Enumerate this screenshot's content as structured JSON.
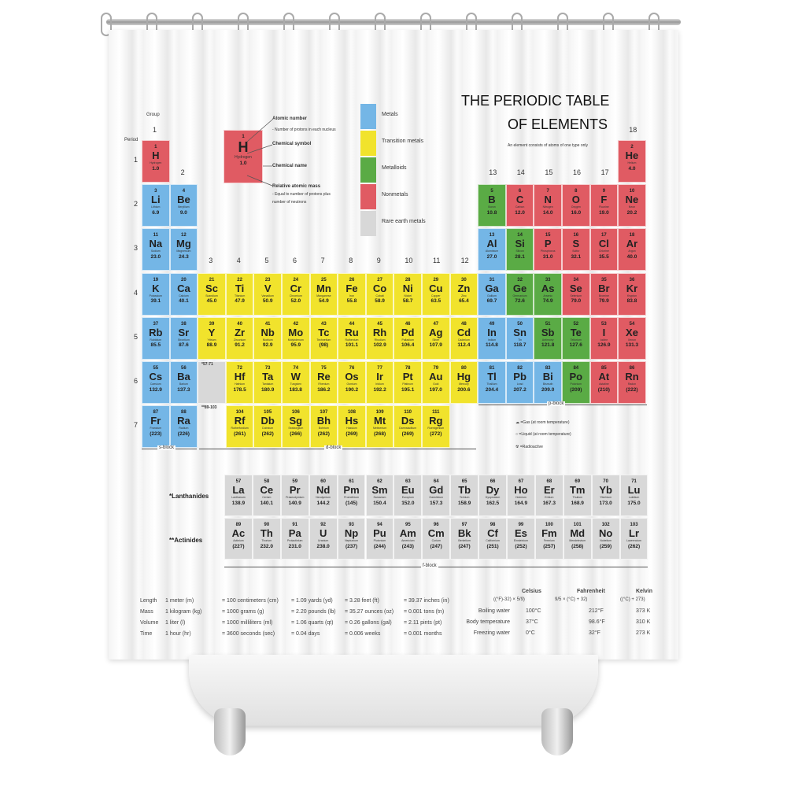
{
  "colors": {
    "metal": "#74b6e6",
    "transition": "#f1e32c",
    "metalloid": "#5aab45",
    "nonmetal": "#e05b63",
    "rare": "#d8d8d8"
  },
  "title_line1": "THE PERIODIC TABLE",
  "title_line2": "OF ELEMENTS",
  "subtitle": "An element consists of atoms of one type only",
  "group_label": "Group",
  "period_label": "Period",
  "groups": [
    "1",
    "2",
    "3",
    "4",
    "5",
    "6",
    "7",
    "8",
    "9",
    "10",
    "11",
    "12",
    "13",
    "14",
    "15",
    "16",
    "17",
    "18"
  ],
  "periods": [
    "1",
    "2",
    "3",
    "4",
    "5",
    "6",
    "7"
  ],
  "key": {
    "number": "1",
    "symbol": "H",
    "name": "Hydrogen",
    "mass": "1.0",
    "atomic_number": "Atomic number",
    "atomic_number_desc": "- Number of protons in each nucleus",
    "chemical_symbol": "Chemical symbol",
    "chemical_name": "Chemical name",
    "atomic_mass": "Relative atomic mass",
    "atomic_mass_desc1": "- Equal to number of protons plus",
    "atomic_mass_desc2": "number of neutrons"
  },
  "legend": [
    {
      "label": "Metals",
      "cat": "metal"
    },
    {
      "label": "Transition metals",
      "cat": "transition"
    },
    {
      "label": "Metalloids",
      "cat": "metalloid"
    },
    {
      "label": "Nonmetals",
      "cat": "nonmetal"
    },
    {
      "label": "Rare earth metals",
      "cat": "rare"
    }
  ],
  "state_legend": {
    "gas": "=Gas (at room temperature)",
    "liquid": "=Liquid (at room temperature)",
    "radioactive": "=Radioactive"
  },
  "blocks": {
    "s": "s-block",
    "d": "d-block",
    "p": "p-block",
    "f": "f-block"
  },
  "lanth_ref": "*57-71",
  "act_ref": "**89-103",
  "lanth_label": "*Lanthanides",
  "act_label": "**Actinides",
  "elements": [
    {
      "n": "1",
      "s": "H",
      "name": "Hydrogen",
      "m": "1.0",
      "c": "nonmetal",
      "g": 1,
      "p": 1
    },
    {
      "n": "2",
      "s": "He",
      "name": "Helium",
      "m": "4.0",
      "c": "nonmetal",
      "g": 18,
      "p": 1
    },
    {
      "n": "3",
      "s": "Li",
      "name": "Lithium",
      "m": "6.9",
      "c": "metal",
      "g": 1,
      "p": 2
    },
    {
      "n": "4",
      "s": "Be",
      "name": "Beryllium",
      "m": "9.0",
      "c": "metal",
      "g": 2,
      "p": 2
    },
    {
      "n": "5",
      "s": "B",
      "name": "Boron",
      "m": "10.8",
      "c": "metalloid",
      "g": 13,
      "p": 2
    },
    {
      "n": "6",
      "s": "C",
      "name": "Carbon",
      "m": "12.0",
      "c": "nonmetal",
      "g": 14,
      "p": 2
    },
    {
      "n": "7",
      "s": "N",
      "name": "Nitrogen",
      "m": "14.0",
      "c": "nonmetal",
      "g": 15,
      "p": 2
    },
    {
      "n": "8",
      "s": "O",
      "name": "Oxygen",
      "m": "16.0",
      "c": "nonmetal",
      "g": 16,
      "p": 2
    },
    {
      "n": "9",
      "s": "F",
      "name": "Fluorine",
      "m": "19.0",
      "c": "nonmetal",
      "g": 17,
      "p": 2
    },
    {
      "n": "10",
      "s": "Ne",
      "name": "Neon",
      "m": "20.2",
      "c": "nonmetal",
      "g": 18,
      "p": 2
    },
    {
      "n": "11",
      "s": "Na",
      "name": "Sodium",
      "m": "23.0",
      "c": "metal",
      "g": 1,
      "p": 3
    },
    {
      "n": "12",
      "s": "Mg",
      "name": "Magnesium",
      "m": "24.3",
      "c": "metal",
      "g": 2,
      "p": 3
    },
    {
      "n": "13",
      "s": "Al",
      "name": "Aluminium",
      "m": "27.0",
      "c": "metal",
      "g": 13,
      "p": 3
    },
    {
      "n": "14",
      "s": "Si",
      "name": "Silicon",
      "m": "28.1",
      "c": "metalloid",
      "g": 14,
      "p": 3
    },
    {
      "n": "15",
      "s": "P",
      "name": "Phosphorus",
      "m": "31.0",
      "c": "nonmetal",
      "g": 15,
      "p": 3
    },
    {
      "n": "16",
      "s": "S",
      "name": "Sulfur",
      "m": "32.1",
      "c": "nonmetal",
      "g": 16,
      "p": 3
    },
    {
      "n": "17",
      "s": "Cl",
      "name": "Chlorine",
      "m": "35.5",
      "c": "nonmetal",
      "g": 17,
      "p": 3
    },
    {
      "n": "18",
      "s": "Ar",
      "name": "Argon",
      "m": "40.0",
      "c": "nonmetal",
      "g": 18,
      "p": 3
    },
    {
      "n": "19",
      "s": "K",
      "name": "Potassium",
      "m": "39.1",
      "c": "metal",
      "g": 1,
      "p": 4
    },
    {
      "n": "20",
      "s": "Ca",
      "name": "Calcium",
      "m": "40.1",
      "c": "metal",
      "g": 2,
      "p": 4
    },
    {
      "n": "21",
      "s": "Sc",
      "name": "Scandium",
      "m": "45.0",
      "c": "transition",
      "g": 3,
      "p": 4
    },
    {
      "n": "22",
      "s": "Ti",
      "name": "Titanium",
      "m": "47.9",
      "c": "transition",
      "g": 4,
      "p": 4
    },
    {
      "n": "23",
      "s": "V",
      "name": "Vanadium",
      "m": "50.9",
      "c": "transition",
      "g": 5,
      "p": 4
    },
    {
      "n": "24",
      "s": "Cr",
      "name": "Chromium",
      "m": "52.0",
      "c": "transition",
      "g": 6,
      "p": 4
    },
    {
      "n": "25",
      "s": "Mn",
      "name": "Manganese",
      "m": "54.9",
      "c": "transition",
      "g": 7,
      "p": 4
    },
    {
      "n": "26",
      "s": "Fe",
      "name": "Iron",
      "m": "55.8",
      "c": "transition",
      "g": 8,
      "p": 4
    },
    {
      "n": "27",
      "s": "Co",
      "name": "Cobalt",
      "m": "58.9",
      "c": "transition",
      "g": 9,
      "p": 4
    },
    {
      "n": "28",
      "s": "Ni",
      "name": "Nickel",
      "m": "58.7",
      "c": "transition",
      "g": 10,
      "p": 4
    },
    {
      "n": "29",
      "s": "Cu",
      "name": "Copper",
      "m": "63.5",
      "c": "transition",
      "g": 11,
      "p": 4
    },
    {
      "n": "30",
      "s": "Zn",
      "name": "Zinc",
      "m": "65.4",
      "c": "transition",
      "g": 12,
      "p": 4
    },
    {
      "n": "31",
      "s": "Ga",
      "name": "Gallium",
      "m": "69.7",
      "c": "metal",
      "g": 13,
      "p": 4
    },
    {
      "n": "32",
      "s": "Ge",
      "name": "Germanium",
      "m": "72.6",
      "c": "metalloid",
      "g": 14,
      "p": 4
    },
    {
      "n": "33",
      "s": "As",
      "name": "Arsenic",
      "m": "74.9",
      "c": "metalloid",
      "g": 15,
      "p": 4
    },
    {
      "n": "34",
      "s": "Se",
      "name": "Selenium",
      "m": "79.0",
      "c": "nonmetal",
      "g": 16,
      "p": 4
    },
    {
      "n": "35",
      "s": "Br",
      "name": "Bromine",
      "m": "79.9",
      "c": "nonmetal",
      "g": 17,
      "p": 4
    },
    {
      "n": "36",
      "s": "Kr",
      "name": "Krypton",
      "m": "83.8",
      "c": "nonmetal",
      "g": 18,
      "p": 4
    },
    {
      "n": "37",
      "s": "Rb",
      "name": "Rubidium",
      "m": "85.5",
      "c": "metal",
      "g": 1,
      "p": 5
    },
    {
      "n": "38",
      "s": "Sr",
      "name": "Strontium",
      "m": "87.6",
      "c": "metal",
      "g": 2,
      "p": 5
    },
    {
      "n": "39",
      "s": "Y",
      "name": "Yttrium",
      "m": "88.9",
      "c": "transition",
      "g": 3,
      "p": 5
    },
    {
      "n": "40",
      "s": "Zr",
      "name": "Zirconium",
      "m": "91.2",
      "c": "transition",
      "g": 4,
      "p": 5
    },
    {
      "n": "41",
      "s": "Nb",
      "name": "Niobium",
      "m": "92.9",
      "c": "transition",
      "g": 5,
      "p": 5
    },
    {
      "n": "42",
      "s": "Mo",
      "name": "Molybdenum",
      "m": "95.9",
      "c": "transition",
      "g": 6,
      "p": 5
    },
    {
      "n": "43",
      "s": "Tc",
      "name": "Technetium",
      "m": "(98)",
      "c": "transition",
      "g": 7,
      "p": 5
    },
    {
      "n": "44",
      "s": "Ru",
      "name": "Ruthenium",
      "m": "101.1",
      "c": "transition",
      "g": 8,
      "p": 5
    },
    {
      "n": "45",
      "s": "Rh",
      "name": "Rhodium",
      "m": "102.9",
      "c": "transition",
      "g": 9,
      "p": 5
    },
    {
      "n": "46",
      "s": "Pd",
      "name": "Palladium",
      "m": "106.4",
      "c": "transition",
      "g": 10,
      "p": 5
    },
    {
      "n": "47",
      "s": "Ag",
      "name": "Silver",
      "m": "107.9",
      "c": "transition",
      "g": 11,
      "p": 5
    },
    {
      "n": "48",
      "s": "Cd",
      "name": "Cadmium",
      "m": "112.4",
      "c": "transition",
      "g": 12,
      "p": 5
    },
    {
      "n": "49",
      "s": "In",
      "name": "Indium",
      "m": "114.8",
      "c": "metal",
      "g": 13,
      "p": 5
    },
    {
      "n": "50",
      "s": "Sn",
      "name": "Tin",
      "m": "118.7",
      "c": "metal",
      "g": 14,
      "p": 5
    },
    {
      "n": "51",
      "s": "Sb",
      "name": "Antimony",
      "m": "121.8",
      "c": "metalloid",
      "g": 15,
      "p": 5
    },
    {
      "n": "52",
      "s": "Te",
      "name": "Tellurium",
      "m": "127.6",
      "c": "metalloid",
      "g": 16,
      "p": 5
    },
    {
      "n": "53",
      "s": "I",
      "name": "Iodine",
      "m": "126.9",
      "c": "nonmetal",
      "g": 17,
      "p": 5
    },
    {
      "n": "54",
      "s": "Xe",
      "name": "Xenon",
      "m": "131.3",
      "c": "nonmetal",
      "g": 18,
      "p": 5
    },
    {
      "n": "55",
      "s": "Cs",
      "name": "Caesium",
      "m": "132.9",
      "c": "metal",
      "g": 1,
      "p": 6
    },
    {
      "n": "56",
      "s": "Ba",
      "name": "Barium",
      "m": "137.3",
      "c": "metal",
      "g": 2,
      "p": 6
    },
    {
      "n": "72",
      "s": "Hf",
      "name": "Hafnium",
      "m": "178.5",
      "c": "transition",
      "g": 4,
      "p": 6
    },
    {
      "n": "73",
      "s": "Ta",
      "name": "Tantalum",
      "m": "180.9",
      "c": "transition",
      "g": 5,
      "p": 6
    },
    {
      "n": "74",
      "s": "W",
      "name": "Tungsten",
      "m": "183.8",
      "c": "transition",
      "g": 6,
      "p": 6
    },
    {
      "n": "75",
      "s": "Re",
      "name": "Rhenium",
      "m": "186.2",
      "c": "transition",
      "g": 7,
      "p": 6
    },
    {
      "n": "76",
      "s": "Os",
      "name": "Osmium",
      "m": "190.2",
      "c": "transition",
      "g": 8,
      "p": 6
    },
    {
      "n": "77",
      "s": "Ir",
      "name": "Iridium",
      "m": "192.2",
      "c": "transition",
      "g": 9,
      "p": 6
    },
    {
      "n": "78",
      "s": "Pt",
      "name": "Platinum",
      "m": "195.1",
      "c": "transition",
      "g": 10,
      "p": 6
    },
    {
      "n": "79",
      "s": "Au",
      "name": "Gold",
      "m": "197.0",
      "c": "transition",
      "g": 11,
      "p": 6
    },
    {
      "n": "80",
      "s": "Hg",
      "name": "Mercury",
      "m": "200.6",
      "c": "transition",
      "g": 12,
      "p": 6
    },
    {
      "n": "81",
      "s": "Tl",
      "name": "Thallium",
      "m": "204.4",
      "c": "metal",
      "g": 13,
      "p": 6
    },
    {
      "n": "82",
      "s": "Pb",
      "name": "Lead",
      "m": "207.2",
      "c": "metal",
      "g": 14,
      "p": 6
    },
    {
      "n": "83",
      "s": "Bi",
      "name": "Bismuth",
      "m": "209.0",
      "c": "metal",
      "g": 15,
      "p": 6
    },
    {
      "n": "84",
      "s": "Po",
      "name": "Polonium",
      "m": "(209)",
      "c": "metalloid",
      "g": 16,
      "p": 6
    },
    {
      "n": "85",
      "s": "At",
      "name": "Astatine",
      "m": "(210)",
      "c": "nonmetal",
      "g": 17,
      "p": 6
    },
    {
      "n": "86",
      "s": "Rn",
      "name": "Radon",
      "m": "(222)",
      "c": "nonmetal",
      "g": 18,
      "p": 6
    },
    {
      "n": "87",
      "s": "Fr",
      "name": "Francium",
      "m": "(223)",
      "c": "metal",
      "g": 1,
      "p": 7
    },
    {
      "n": "88",
      "s": "Ra",
      "name": "Radium",
      "m": "(226)",
      "c": "metal",
      "g": 2,
      "p": 7
    },
    {
      "n": "104",
      "s": "Rf",
      "name": "Rutherfordium",
      "m": "(261)",
      "c": "transition",
      "g": 4,
      "p": 7
    },
    {
      "n": "105",
      "s": "Db",
      "name": "Dubnium",
      "m": "(262)",
      "c": "transition",
      "g": 5,
      "p": 7
    },
    {
      "n": "106",
      "s": "Sg",
      "name": "Seaborgium",
      "m": "(266)",
      "c": "transition",
      "g": 6,
      "p": 7
    },
    {
      "n": "107",
      "s": "Bh",
      "name": "Bohrium",
      "m": "(262)",
      "c": "transition",
      "g": 7,
      "p": 7
    },
    {
      "n": "108",
      "s": "Hs",
      "name": "Hassium",
      "m": "(269)",
      "c": "transition",
      "g": 8,
      "p": 7
    },
    {
      "n": "109",
      "s": "Mt",
      "name": "Meitnerium",
      "m": "(268)",
      "c": "transition",
      "g": 9,
      "p": 7
    },
    {
      "n": "110",
      "s": "Ds",
      "name": "Darmstadtium",
      "m": "(269)",
      "c": "transition",
      "g": 10,
      "p": 7
    },
    {
      "n": "111",
      "s": "Rg",
      "name": "Roentgenium",
      "m": "(272)",
      "c": "transition",
      "g": 11,
      "p": 7
    }
  ],
  "lanthanides": [
    {
      "n": "57",
      "s": "La",
      "name": "Lanthanum",
      "m": "138.9"
    },
    {
      "n": "58",
      "s": "Ce",
      "name": "Cerium",
      "m": "140.1"
    },
    {
      "n": "59",
      "s": "Pr",
      "name": "Praseodymium",
      "m": "140.9"
    },
    {
      "n": "60",
      "s": "Nd",
      "name": "Neodymium",
      "m": "144.2"
    },
    {
      "n": "61",
      "s": "Pm",
      "name": "Promethium",
      "m": "(145)"
    },
    {
      "n": "62",
      "s": "Sm",
      "name": "Samarium",
      "m": "150.4"
    },
    {
      "n": "63",
      "s": "Eu",
      "name": "Europium",
      "m": "152.0"
    },
    {
      "n": "64",
      "s": "Gd",
      "name": "Gadolinium",
      "m": "157.3"
    },
    {
      "n": "65",
      "s": "Tb",
      "name": "Terbium",
      "m": "158.9"
    },
    {
      "n": "66",
      "s": "Dy",
      "name": "Dysprosium",
      "m": "162.5"
    },
    {
      "n": "67",
      "s": "Ho",
      "name": "Holmium",
      "m": "164.9"
    },
    {
      "n": "68",
      "s": "Er",
      "name": "Erbium",
      "m": "167.3"
    },
    {
      "n": "69",
      "s": "Tm",
      "name": "Thulium",
      "m": "168.9"
    },
    {
      "n": "70",
      "s": "Yb",
      "name": "Ytterbium",
      "m": "173.0"
    },
    {
      "n": "71",
      "s": "Lu",
      "name": "Lutetium",
      "m": "175.0"
    }
  ],
  "actinides": [
    {
      "n": "89",
      "s": "Ac",
      "name": "Actinium",
      "m": "(227)"
    },
    {
      "n": "90",
      "s": "Th",
      "name": "Thorium",
      "m": "232.0"
    },
    {
      "n": "91",
      "s": "Pa",
      "name": "Protactinium",
      "m": "231.0"
    },
    {
      "n": "92",
      "s": "U",
      "name": "Uranium",
      "m": "238.0"
    },
    {
      "n": "93",
      "s": "Np",
      "name": "Neptunium",
      "m": "(237)"
    },
    {
      "n": "94",
      "s": "Pu",
      "name": "Plutonium",
      "m": "(244)"
    },
    {
      "n": "95",
      "s": "Am",
      "name": "Americium",
      "m": "(243)"
    },
    {
      "n": "96",
      "s": "Cm",
      "name": "Curium",
      "m": "(247)"
    },
    {
      "n": "97",
      "s": "Bk",
      "name": "Berkelium",
      "m": "(247)"
    },
    {
      "n": "98",
      "s": "Cf",
      "name": "Californium",
      "m": "(251)"
    },
    {
      "n": "99",
      "s": "Es",
      "name": "Einsteinium",
      "m": "(252)"
    },
    {
      "n": "100",
      "s": "Fm",
      "name": "Fermium",
      "m": "(257)"
    },
    {
      "n": "101",
      "s": "Md",
      "name": "Mendelevium",
      "m": "(258)"
    },
    {
      "n": "102",
      "s": "No",
      "name": "Nobelium",
      "m": "(259)"
    },
    {
      "n": "103",
      "s": "Lr",
      "name": "Lawrencium",
      "m": "(262)"
    }
  ],
  "conversions": [
    [
      "Length",
      "1 meter (m)",
      "= 100 centimeters (cm)",
      "= 1.09 yards (yd)",
      "= 3.28 feet (ft)",
      "= 39.37 inches (in)"
    ],
    [
      "Mass",
      "1 kilogram (kg)",
      "= 1000 grams (g)",
      "= 2.20 pounds (lb)",
      "= 35.27 ounces (oz)",
      "= 0.001 tons (tn)"
    ],
    [
      "Volume",
      "1 liter (l)",
      "= 1000 milliliters (ml)",
      "= 1.06 quarts (qt)",
      "= 0.26 gallons (gal)",
      "= 2.11 pints (pt)"
    ],
    [
      "Time",
      "1 hour (hr)",
      "= 3600 seconds (sec)",
      "= 0.04 days",
      "= 0.006 weeks",
      "= 0.001 months"
    ]
  ],
  "temperature": {
    "headers": [
      "Celsius",
      "Fahrenheit",
      "Kelvin"
    ],
    "formulas": [
      "((°F)-32) × 5/9)",
      "9/5 × (°C) + 32)",
      "((°C) + 273)"
    ],
    "rows": [
      [
        "Boiling water",
        "100°C",
        "212°F",
        "373 K"
      ],
      [
        "Body temperature",
        "37°C",
        "98.6°F",
        "310 K"
      ],
      [
        "Freezing water",
        "0°C",
        "32°F",
        "273 K"
      ]
    ]
  }
}
